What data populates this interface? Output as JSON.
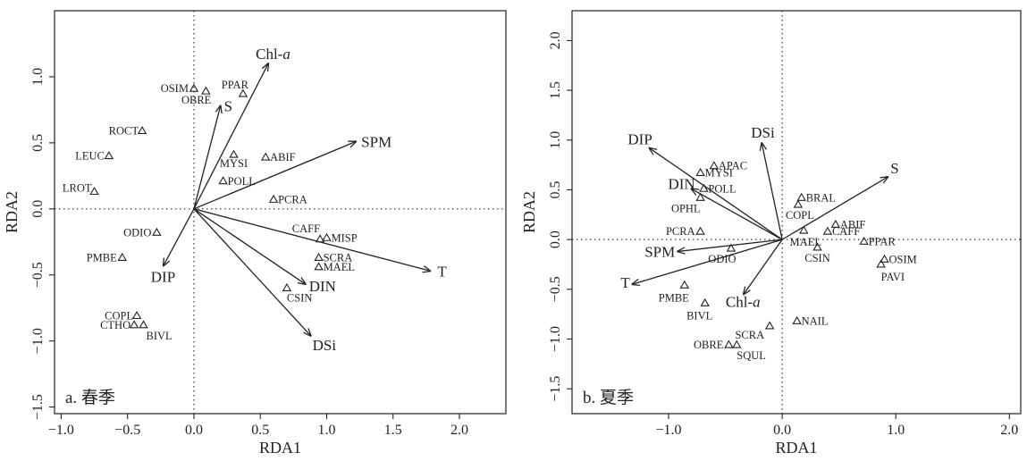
{
  "chart_data": [
    {
      "type": "scatter",
      "panel_label": "a. 春季",
      "xlabel": "RDA1",
      "ylabel": "RDA2",
      "xlim": [
        -1.05,
        2.35
      ],
      "ylim": [
        -1.55,
        1.5
      ],
      "xticks": [
        -1.0,
        -0.5,
        0.0,
        0.5,
        1.0,
        1.5,
        2.0
      ],
      "xtick_labels": [
        "−1.0",
        "−0.5",
        "0.0",
        "0.5",
        "1.0",
        "1.5",
        "2.0"
      ],
      "yticks": [
        -1.5,
        -1.0,
        -0.5,
        0.0,
        0.5,
        1.0
      ],
      "ytick_labels": [
        "−1.5",
        "−1.0",
        "−0.5",
        "0.0",
        "0.5",
        "1.0"
      ],
      "env_arrows": [
        {
          "label": "Chl-",
          "label_em": "a",
          "x": 0.56,
          "y": 1.1
        },
        {
          "label": "S",
          "x": 0.2,
          "y": 0.78
        },
        {
          "label": "SPM",
          "x": 1.22,
          "y": 0.51
        },
        {
          "label": "T",
          "x": 1.78,
          "y": -0.47
        },
        {
          "label": "DIN",
          "x": 0.84,
          "y": -0.57
        },
        {
          "label": "DSi",
          "x": 0.88,
          "y": -0.96
        },
        {
          "label": "DIP",
          "x": -0.23,
          "y": -0.43
        }
      ],
      "species": [
        {
          "label": "OSIM",
          "x": 0.0,
          "y": 0.91
        },
        {
          "label": "OBRE",
          "x": 0.09,
          "y": 0.89
        },
        {
          "label": "PPAR",
          "x": 0.37,
          "y": 0.87
        },
        {
          "label": "ROCT",
          "x": -0.39,
          "y": 0.59
        },
        {
          "label": "LEUC",
          "x": -0.64,
          "y": 0.4
        },
        {
          "label": "LROT",
          "x": -0.75,
          "y": 0.13
        },
        {
          "label": "MYSI",
          "x": 0.3,
          "y": 0.41
        },
        {
          "label": "ABIF",
          "x": 0.54,
          "y": 0.39
        },
        {
          "label": "POLL",
          "x": 0.22,
          "y": 0.21
        },
        {
          "label": "PCRA",
          "x": 0.6,
          "y": 0.07
        },
        {
          "label": "ODIO",
          "x": -0.28,
          "y": -0.18
        },
        {
          "label": "PMBE",
          "x": -0.54,
          "y": -0.37
        },
        {
          "label": "CAFF",
          "x": 0.95,
          "y": -0.23
        },
        {
          "label": "MISP",
          "x": 1.0,
          "y": -0.22
        },
        {
          "label": "SCRA",
          "x": 0.94,
          "y": -0.37
        },
        {
          "label": "MAEL",
          "x": 0.94,
          "y": -0.44
        },
        {
          "label": "CSIN",
          "x": 0.7,
          "y": -0.6
        },
        {
          "label": "COPL",
          "x": -0.43,
          "y": -0.81
        },
        {
          "label": "CTHO",
          "x": -0.45,
          "y": -0.88
        },
        {
          "label": "BIVL",
          "x": -0.38,
          "y": -0.88
        }
      ]
    },
    {
      "type": "scatter",
      "panel_label": "b. 夏季",
      "xlabel": "RDA1",
      "ylabel": "RDA2",
      "xlim": [
        -1.85,
        2.1
      ],
      "ylim": [
        -1.75,
        2.3
      ],
      "xticks": [
        -1.0,
        0.0,
        1.0,
        2.0
      ],
      "xtick_labels": [
        "−1.0",
        "0.0",
        "1.0",
        "2.0"
      ],
      "yticks": [
        -1.5,
        -1.0,
        -0.5,
        0.0,
        0.5,
        1.0,
        1.5,
        2.0
      ],
      "ytick_labels": [
        "−1.5",
        "−1.0",
        "−0.5",
        "0.0",
        "0.5",
        "1.0",
        "1.5",
        "2.0"
      ],
      "env_arrows": [
        {
          "label": "DIP",
          "x": -1.17,
          "y": 0.92
        },
        {
          "label": "DSi",
          "x": -0.18,
          "y": 0.97
        },
        {
          "label": "S",
          "x": 0.93,
          "y": 0.63
        },
        {
          "label": "DIN",
          "x": -0.8,
          "y": 0.51
        },
        {
          "label": "SPM",
          "x": -0.92,
          "y": -0.12
        },
        {
          "label": "T",
          "x": -1.32,
          "y": -0.45
        },
        {
          "label": "Chl-",
          "label_em": "a",
          "x": -0.34,
          "y": -0.55
        }
      ],
      "species": [
        {
          "label": "APAC",
          "x": -0.6,
          "y": 0.74
        },
        {
          "label": "MYSI",
          "x": -0.72,
          "y": 0.67
        },
        {
          "label": "POLL",
          "x": -0.69,
          "y": 0.51
        },
        {
          "label": "OPHL",
          "x": -0.72,
          "y": 0.42
        },
        {
          "label": "BRAL",
          "x": 0.17,
          "y": 0.42
        },
        {
          "label": "COPL",
          "x": 0.14,
          "y": 0.35
        },
        {
          "label": "ABIF",
          "x": 0.47,
          "y": 0.15
        },
        {
          "label": "CAFF",
          "x": 0.4,
          "y": 0.08
        },
        {
          "label": "MAEL",
          "x": 0.19,
          "y": 0.09
        },
        {
          "label": "PPAR",
          "x": 0.72,
          "y": -0.02
        },
        {
          "label": "CSIN",
          "x": 0.31,
          "y": -0.08
        },
        {
          "label": "OSIM",
          "x": 0.9,
          "y": -0.2
        },
        {
          "label": "PAVI",
          "x": 0.87,
          "y": -0.25
        },
        {
          "label": "PCRA",
          "x": -0.72,
          "y": 0.08
        },
        {
          "label": "ODIO",
          "x": -0.45,
          "y": -0.09
        },
        {
          "label": "PMBE",
          "x": -0.86,
          "y": -0.46
        },
        {
          "label": "BIVL",
          "x": -0.68,
          "y": -0.64
        },
        {
          "label": "NAIL",
          "x": 0.13,
          "y": -0.82
        },
        {
          "label": "SCRA",
          "x": -0.11,
          "y": -0.87
        },
        {
          "label": "OBRE",
          "x": -0.47,
          "y": -1.06
        },
        {
          "label": "SQUL",
          "x": -0.4,
          "y": -1.06
        }
      ]
    }
  ]
}
